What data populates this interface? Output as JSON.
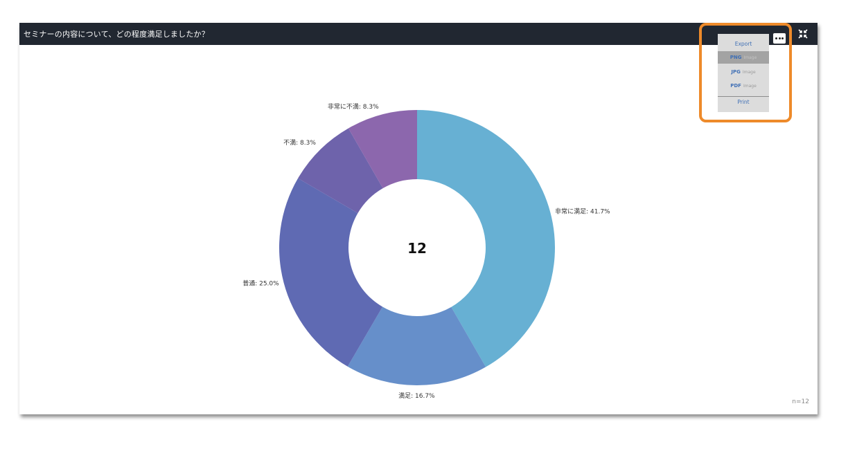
{
  "header": {
    "title": "セミナーの内容について、どの程度満足しましたか？",
    "collapse_icon": "collapse-arrows-icon"
  },
  "chart_data": {
    "type": "pie",
    "title": "",
    "center_total": "12",
    "slices": [
      {
        "label": "非常に満足",
        "value": 41.7,
        "color": "#67b0d3",
        "display": "非常に満足: 41.7%"
      },
      {
        "label": "満足",
        "value": 16.7,
        "color": "#668fca",
        "display": "満足: 16.7%"
      },
      {
        "label": "普通",
        "value": 25.0,
        "color": "#5f6ab3",
        "display": "普通: 25.0%"
      },
      {
        "label": "不満",
        "value": 8.3,
        "color": "#6e63ab",
        "display": "不満: 8.3%"
      },
      {
        "label": "非常に不満",
        "value": 8.3,
        "color": "#8c67ad",
        "display": "非常に不満: 8.3%"
      }
    ],
    "sample_size": "n=12",
    "legend": "none"
  },
  "export_menu": {
    "header": "Export",
    "items": [
      {
        "label": "PNG",
        "sub": "Image",
        "active": true
      },
      {
        "label": "JPG",
        "sub": "Image",
        "active": false
      },
      {
        "label": "PDF",
        "sub": "Image",
        "active": false
      }
    ],
    "print_label": "Print",
    "menu_icon": "more-dots-icon",
    "highlight_color": "#ee8a2a"
  }
}
